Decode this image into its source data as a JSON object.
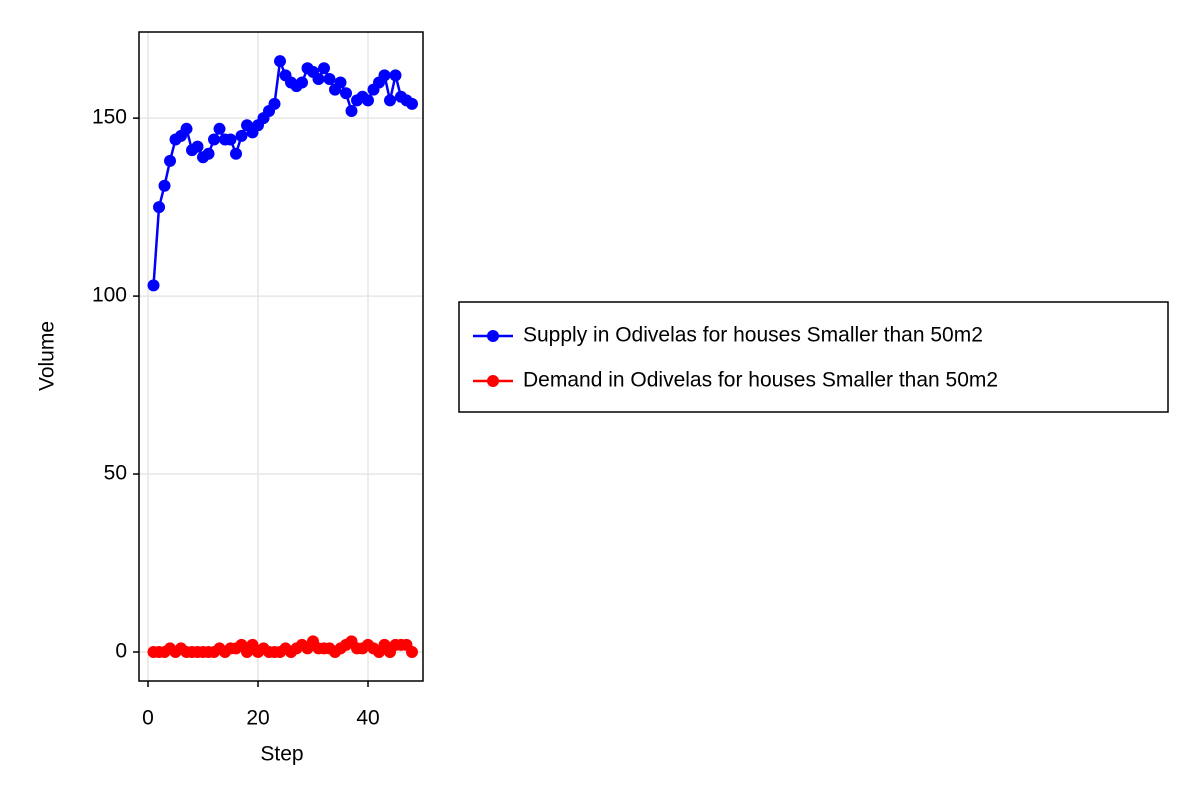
{
  "chart_data": {
    "type": "line",
    "x_label": "Step",
    "y_label": "Volume",
    "x": [
      1,
      2,
      3,
      4,
      5,
      6,
      7,
      8,
      9,
      10,
      11,
      12,
      13,
      14,
      15,
      16,
      17,
      18,
      19,
      20,
      21,
      22,
      23,
      24,
      25,
      26,
      27,
      28,
      29,
      30,
      31,
      32,
      33,
      34,
      35,
      36,
      37,
      38,
      39,
      40,
      41,
      42,
      43,
      44,
      45,
      46,
      47,
      48
    ],
    "series": [
      {
        "name": "Supply in Odivelas for houses Smaller than 50m2",
        "color": "#0000ff",
        "values": [
          103,
          125,
          131,
          138,
          144,
          145,
          147,
          141,
          142,
          139,
          140,
          144,
          147,
          144,
          144,
          140,
          145,
          148,
          146,
          148,
          150,
          152,
          154,
          166,
          162,
          160,
          159,
          160,
          164,
          163,
          161,
          164,
          161,
          158,
          160,
          157,
          152,
          155,
          156,
          155,
          158,
          160,
          162,
          155,
          162,
          156,
          155,
          154
        ]
      },
      {
        "name": "Demand in Odivelas for houses Smaller than 50m2",
        "color": "#ff0000",
        "values": [
          0,
          0,
          0,
          1,
          0,
          1,
          0,
          0,
          0,
          0,
          0,
          0,
          1,
          0,
          1,
          1,
          2,
          0,
          2,
          0,
          1,
          0,
          0,
          0,
          1,
          0,
          1,
          2,
          1,
          3,
          1,
          1,
          1,
          0,
          1,
          2,
          3,
          1,
          1,
          2,
          1,
          0,
          2,
          0,
          2,
          2,
          2,
          0
        ]
      }
    ],
    "xlim": [
      -1.64,
      50
    ],
    "ylim": [
      -8.15,
      174.2
    ],
    "xticks": [
      0,
      20,
      40
    ],
    "yticks": [
      0,
      50,
      100,
      150
    ],
    "grid": true,
    "legend": "right"
  }
}
